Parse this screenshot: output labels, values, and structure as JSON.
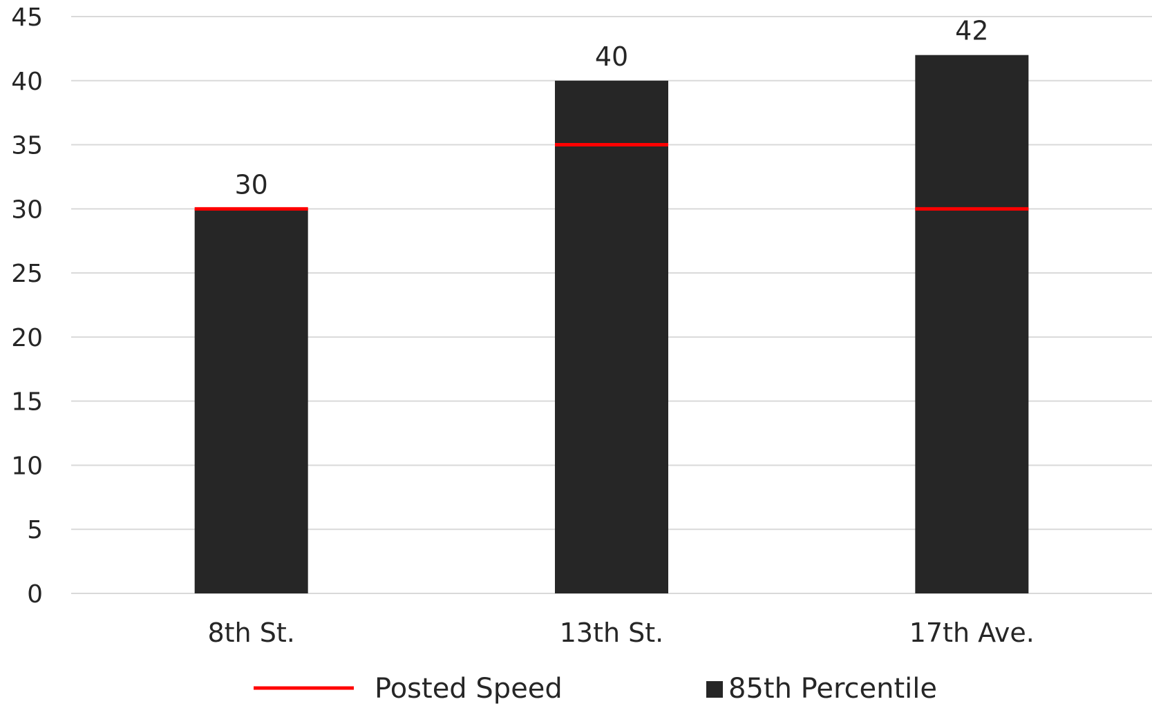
{
  "chart_data": {
    "type": "bar",
    "categories": [
      "8th St.",
      "13th St.",
      "17th Ave."
    ],
    "series": [
      {
        "name": "85th Percentile",
        "kind": "bar",
        "values": [
          30,
          40,
          42
        ],
        "color": "#262626"
      },
      {
        "name": "Posted Speed",
        "kind": "line-marker",
        "values": [
          30,
          35,
          30
        ],
        "color": "#ff0000"
      }
    ],
    "data_labels": [
      "30",
      "40",
      "42"
    ],
    "yticks": [
      "0",
      "5",
      "10",
      "15",
      "20",
      "25",
      "30",
      "35",
      "40",
      "45"
    ],
    "ylim": [
      0,
      45
    ],
    "grid": true,
    "legend_position": "bottom",
    "legend": [
      {
        "label": "Posted Speed",
        "symbol": "line",
        "color": "#ff0000"
      },
      {
        "label": "85th Percentile",
        "symbol": "square",
        "color": "#262626"
      }
    ],
    "title": "",
    "xlabel": "",
    "ylabel": ""
  }
}
